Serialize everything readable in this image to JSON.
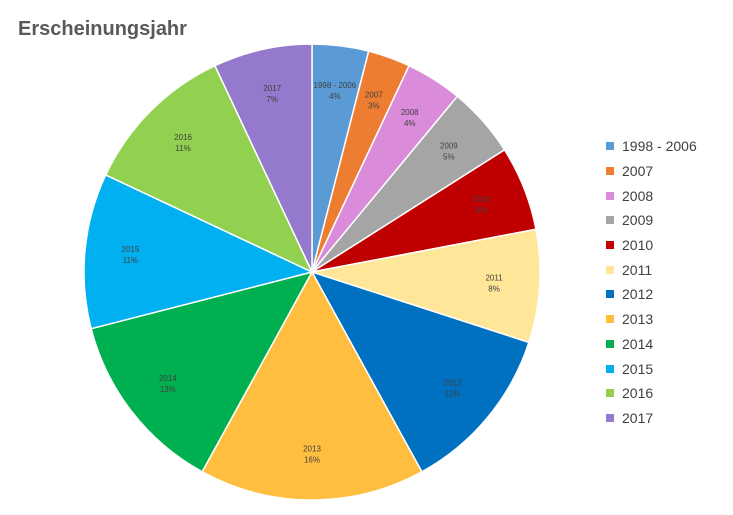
{
  "chart_data": {
    "type": "pie",
    "title": "Erscheinungsjahr",
    "slices": [
      {
        "label": "1998 - 2006",
        "value": 4,
        "display": "4%",
        "color": "#5B9BD5"
      },
      {
        "label": "2007",
        "value": 3,
        "display": "3%",
        "color": "#ED7D31"
      },
      {
        "label": "2008",
        "value": 4,
        "display": "4%",
        "color": "#DA8BDA"
      },
      {
        "label": "2009",
        "value": 5,
        "display": "5%",
        "color": "#A5A5A5"
      },
      {
        "label": "2010",
        "value": 6,
        "display": "6%",
        "color": "#C00000"
      },
      {
        "label": "2011",
        "value": 8,
        "display": "8%",
        "color": "#FFE699"
      },
      {
        "label": "2012",
        "value": 12,
        "display": "12%",
        "color": "#0070C0"
      },
      {
        "label": "2013",
        "value": 16,
        "display": "16%",
        "color": "#FFBE3F"
      },
      {
        "label": "2014",
        "value": 13,
        "display": "13%",
        "color": "#00B050"
      },
      {
        "label": "2015",
        "value": 11,
        "display": "11%",
        "color": "#00B0F0"
      },
      {
        "label": "2016",
        "value": 11,
        "display": "11%",
        "color": "#92D050"
      },
      {
        "label": "2017",
        "value": 7,
        "display": "7%",
        "color": "#9479CC"
      }
    ],
    "legend_position": "right"
  }
}
